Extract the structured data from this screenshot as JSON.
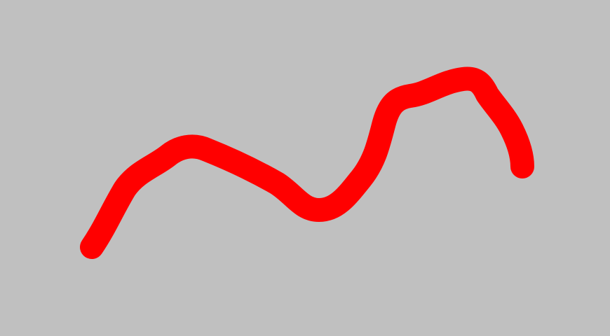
{
  "canvas": {
    "background_color": "#c0c0c0",
    "stroke": {
      "color": "#ff0000",
      "shape": "freehand-wave",
      "cap": "round"
    }
  }
}
